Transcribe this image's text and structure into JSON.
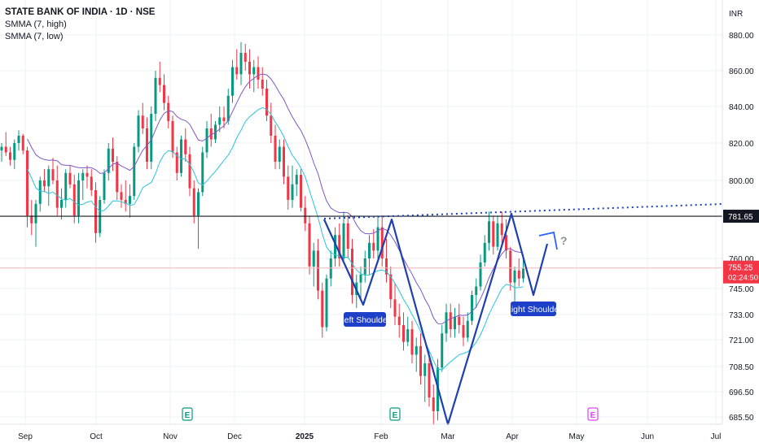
{
  "chart_data": {
    "type": "candlestick",
    "title": "STATE BANK OF INDIA · 1D · NSE",
    "indicators": [
      "SMMA (7, high)",
      "SMMA (7, low)"
    ],
    "currency": "INR",
    "y_ticks": [
      "880.00",
      "860.00",
      "840.00",
      "820.00",
      "800.00",
      "760.00",
      "745.00",
      "733.00",
      "721.00",
      "708.50",
      "696.50",
      "685.50"
    ],
    "x_ticks": [
      "Sep",
      "Oct",
      "Nov",
      "Dec",
      "2025",
      "Feb",
      "Mar",
      "Apr",
      "May",
      "Jun",
      "Jul"
    ],
    "horizontal_line": {
      "value": 781.65,
      "label": "781.65",
      "color": "#131722"
    },
    "last_price": {
      "value": 755.25,
      "label": "755.25",
      "countdown": "02:24:50",
      "color": "#f23645"
    },
    "annotations": [
      {
        "text": "Left Shoulder"
      },
      {
        "text": "Right Shoulder"
      },
      {
        "text": "?"
      }
    ],
    "earnings_markers": [
      "E",
      "E",
      "E"
    ],
    "colors": {
      "up": "#089981",
      "down": "#f23645",
      "smma_high": "#7e57c2",
      "smma_low": "#26c6da",
      "pattern": "#1e3fae",
      "label_bg": "#1e40c8"
    },
    "candles": [
      [
        816,
        820,
        810,
        818
      ],
      [
        818,
        826,
        813,
        815
      ],
      [
        815,
        818,
        808,
        811
      ],
      [
        811,
        822,
        806,
        820
      ],
      [
        820,
        827,
        816,
        824
      ],
      [
        824,
        825,
        814,
        816
      ],
      [
        816,
        818,
        776,
        782
      ],
      [
        782,
        790,
        772,
        778
      ],
      [
        778,
        790,
        766,
        788
      ],
      [
        788,
        802,
        784,
        800
      ],
      [
        800,
        806,
        794,
        797
      ],
      [
        797,
        808,
        787,
        806
      ],
      [
        806,
        812,
        798,
        800
      ],
      [
        800,
        808,
        782,
        786
      ],
      [
        786,
        796,
        780,
        790
      ],
      [
        790,
        806,
        786,
        804
      ],
      [
        804,
        808,
        796,
        798
      ],
      [
        798,
        803,
        778,
        782
      ],
      [
        782,
        804,
        778,
        800
      ],
      [
        800,
        806,
        790,
        804
      ],
      [
        804,
        808,
        796,
        802
      ],
      [
        802,
        806,
        792,
        795
      ],
      [
        795,
        799,
        768,
        773
      ],
      [
        773,
        792,
        771,
        790
      ],
      [
        790,
        806,
        788,
        804
      ],
      [
        804,
        820,
        800,
        817
      ],
      [
        817,
        823,
        805,
        810
      ],
      [
        810,
        813,
        790,
        794
      ],
      [
        794,
        798,
        786,
        790
      ],
      [
        790,
        800,
        784,
        788
      ],
      [
        788,
        798,
        781,
        792
      ],
      [
        792,
        820,
        790,
        818
      ],
      [
        818,
        838,
        815,
        835
      ],
      [
        835,
        842,
        825,
        828
      ],
      [
        828,
        834,
        806,
        810
      ],
      [
        810,
        840,
        806,
        836
      ],
      [
        836,
        860,
        832,
        856
      ],
      [
        856,
        865,
        848,
        852
      ],
      [
        852,
        858,
        838,
        842
      ],
      [
        842,
        846,
        828,
        832
      ],
      [
        832,
        835,
        812,
        815
      ],
      [
        815,
        818,
        800,
        804
      ],
      [
        804,
        824,
        802,
        822
      ],
      [
        822,
        828,
        810,
        814
      ],
      [
        814,
        818,
        792,
        796
      ],
      [
        796,
        800,
        778,
        782
      ],
      [
        782,
        796,
        765,
        794
      ],
      [
        794,
        818,
        792,
        815
      ],
      [
        815,
        832,
        812,
        828
      ],
      [
        828,
        836,
        818,
        822
      ],
      [
        822,
        832,
        820,
        830
      ],
      [
        830,
        840,
        826,
        834
      ],
      [
        834,
        840,
        828,
        832
      ],
      [
        832,
        850,
        830,
        846
      ],
      [
        846,
        866,
        842,
        862
      ],
      [
        862,
        872,
        855,
        858
      ],
      [
        858,
        876,
        852,
        870
      ],
      [
        870,
        875,
        860,
        865
      ],
      [
        865,
        872,
        850,
        858
      ],
      [
        858,
        866,
        848,
        862
      ],
      [
        862,
        868,
        850,
        855
      ],
      [
        855,
        862,
        846,
        850
      ],
      [
        850,
        855,
        832,
        835
      ],
      [
        835,
        842,
        820,
        824
      ],
      [
        824,
        830,
        806,
        810
      ],
      [
        810,
        822,
        806,
        818
      ],
      [
        818,
        822,
        798,
        802
      ],
      [
        802,
        808,
        785,
        790
      ],
      [
        790,
        808,
        786,
        798
      ],
      [
        798,
        806,
        792,
        803
      ],
      [
        803,
        806,
        784,
        786
      ],
      [
        786,
        792,
        774,
        778
      ],
      [
        778,
        782,
        752,
        756
      ],
      [
        756,
        768,
        746,
        764
      ],
      [
        764,
        770,
        740,
        744
      ],
      [
        744,
        748,
        722,
        727
      ],
      [
        727,
        752,
        725,
        750
      ],
      [
        750,
        764,
        746,
        760
      ],
      [
        760,
        776,
        756,
        772
      ],
      [
        772,
        778,
        756,
        760
      ],
      [
        760,
        784,
        758,
        778
      ],
      [
        778,
        782,
        760,
        765
      ],
      [
        765,
        770,
        738,
        742
      ],
      [
        742,
        752,
        736,
        748
      ],
      [
        748,
        756,
        740,
        752
      ],
      [
        752,
        764,
        748,
        760
      ],
      [
        760,
        772,
        752,
        768
      ],
      [
        768,
        775,
        760,
        764
      ],
      [
        764,
        782,
        760,
        776
      ],
      [
        776,
        782,
        756,
        760
      ],
      [
        760,
        770,
        748,
        752
      ],
      [
        752,
        756,
        736,
        740
      ],
      [
        740,
        748,
        728,
        732
      ],
      [
        732,
        738,
        722,
        728
      ],
      [
        728,
        734,
        716,
        720
      ],
      [
        720,
        732,
        718,
        726
      ],
      [
        726,
        730,
        710,
        714
      ],
      [
        714,
        722,
        706,
        718
      ],
      [
        718,
        724,
        700,
        704
      ],
      [
        704,
        714,
        692,
        710
      ],
      [
        710,
        716,
        690,
        694
      ],
      [
        694,
        700,
        682,
        688
      ],
      [
        688,
        712,
        684,
        708
      ],
      [
        708,
        728,
        706,
        724
      ],
      [
        724,
        738,
        720,
        734
      ],
      [
        734,
        738,
        722,
        726
      ],
      [
        726,
        736,
        722,
        732
      ],
      [
        732,
        738,
        724,
        728
      ],
      [
        728,
        732,
        718,
        722
      ],
      [
        722,
        734,
        720,
        730
      ],
      [
        730,
        744,
        728,
        742
      ],
      [
        742,
        750,
        736,
        746
      ],
      [
        746,
        762,
        744,
        758
      ],
      [
        758,
        772,
        756,
        768
      ],
      [
        768,
        784,
        764,
        779
      ],
      [
        779,
        782,
        762,
        766
      ],
      [
        766,
        782,
        764,
        778
      ],
      [
        778,
        784,
        768,
        772
      ],
      [
        772,
        780,
        760,
        764
      ],
      [
        764,
        766,
        744,
        748
      ],
      [
        748,
        756,
        738,
        754
      ],
      [
        754,
        760,
        746,
        750
      ],
      [
        750,
        762,
        748,
        755
      ]
    ]
  }
}
